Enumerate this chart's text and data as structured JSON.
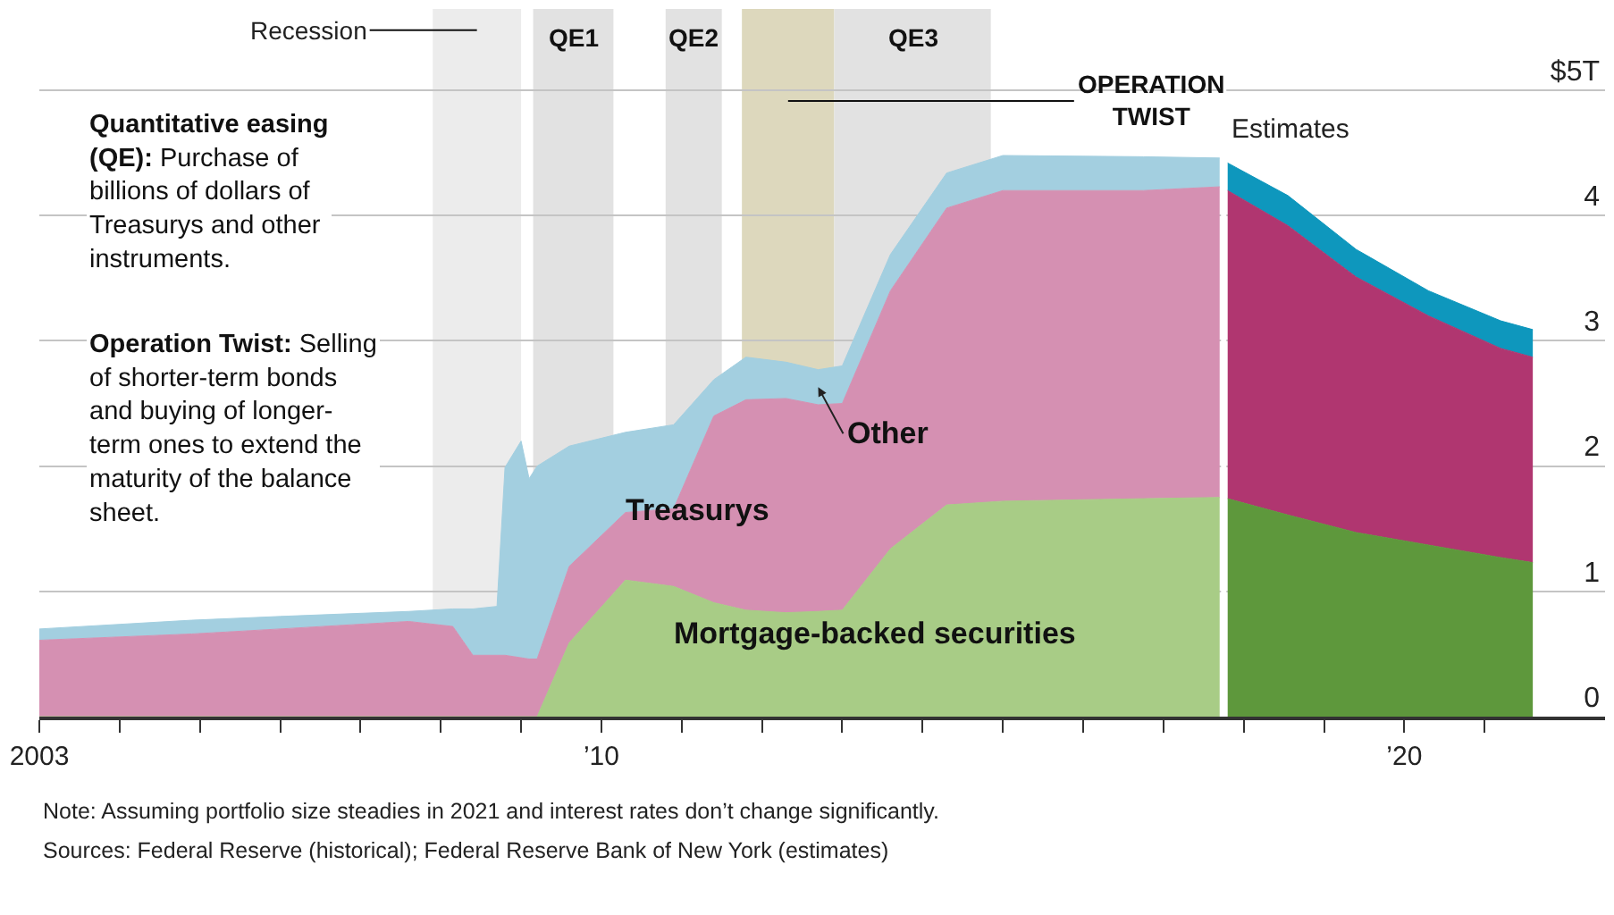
{
  "chart_data": {
    "type": "area",
    "stacked": true,
    "x": [
      2003.0,
      2004.9,
      2006.0,
      2007.6,
      2008.15,
      2008.4,
      2008.7,
      2008.8,
      2009.0,
      2009.1,
      2009.2,
      2009.6,
      2010.3,
      2010.9,
      2011.4,
      2011.8,
      2012.3,
      2012.7,
      2013.0,
      2013.6,
      2014.3,
      2015.0,
      2016.75,
      2017.7,
      2017.8,
      2018.55,
      2019.4,
      2020.3,
      2021.2,
      2021.6
    ],
    "xlim": [
      2003,
      2022.5
    ],
    "xticks": [
      {
        "value": 2003,
        "label": "2003"
      },
      {
        "value": 2004,
        "label": null
      },
      {
        "value": 2005,
        "label": null
      },
      {
        "value": 2006,
        "label": null
      },
      {
        "value": 2007,
        "label": null
      },
      {
        "value": 2008,
        "label": null
      },
      {
        "value": 2009,
        "label": null
      },
      {
        "value": 2010,
        "label": "’10"
      },
      {
        "value": 2011,
        "label": null
      },
      {
        "value": 2012,
        "label": null
      },
      {
        "value": 2013,
        "label": null
      },
      {
        "value": 2014,
        "label": null
      },
      {
        "value": 2015,
        "label": null
      },
      {
        "value": 2016,
        "label": null
      },
      {
        "value": 2017,
        "label": null
      },
      {
        "value": 2018,
        "label": null
      },
      {
        "value": 2019,
        "label": null
      },
      {
        "value": 2020,
        "label": "’20"
      },
      {
        "value": 2021,
        "label": null
      }
    ],
    "ylim": [
      0,
      5.65
    ],
    "yticks": [
      0,
      1,
      2,
      3,
      4,
      {
        "value": 5,
        "label": "$5T"
      }
    ],
    "grid": "y",
    "legend": false,
    "series": [
      {
        "name": "Mortgage-backed securities",
        "color": "#a8cc86",
        "values": [
          0,
          0,
          0,
          0,
          0,
          0,
          0,
          0,
          0,
          0,
          0,
          0.59,
          1.09,
          1.04,
          0.91,
          0.85,
          0.83,
          0.84,
          0.85,
          1.34,
          1.69,
          1.72,
          1.74,
          1.75,
          null,
          null,
          null,
          null,
          null,
          null
        ]
      },
      {
        "name": "Treasurys",
        "color": "#d590b2",
        "values": [
          0.61,
          0.66,
          0.7,
          0.76,
          0.72,
          0.49,
          0.49,
          0.49,
          0.47,
          0.46,
          0.46,
          0.61,
          0.54,
          0.62,
          1.49,
          1.68,
          1.71,
          1.65,
          1.65,
          2.06,
          2.37,
          2.48,
          2.46,
          2.48,
          null,
          null,
          null,
          null,
          null,
          null
        ]
      },
      {
        "name": "Other",
        "color": "#a3cfe0",
        "values": [
          0.09,
          0.11,
          0.1,
          0.08,
          0.14,
          0.37,
          0.39,
          1.5,
          1.73,
          1.44,
          1.54,
          0.96,
          0.64,
          0.67,
          0.29,
          0.34,
          0.29,
          0.28,
          0.3,
          0.29,
          0.28,
          0.28,
          0.27,
          0.23,
          null,
          null,
          null,
          null,
          null,
          null
        ]
      },
      {
        "color": "#5e983c",
        "values": [
          null,
          null,
          null,
          null,
          null,
          null,
          null,
          null,
          null,
          null,
          null,
          null,
          null,
          null,
          null,
          null,
          null,
          null,
          null,
          null,
          null,
          null,
          null,
          null,
          1.74,
          1.61,
          1.47,
          1.37,
          1.27,
          1.23
        ]
      },
      {
        "color": "#b03670",
        "values": [
          null,
          null,
          null,
          null,
          null,
          null,
          null,
          null,
          null,
          null,
          null,
          null,
          null,
          null,
          null,
          null,
          null,
          null,
          null,
          null,
          null,
          null,
          null,
          null,
          2.46,
          2.31,
          2.04,
          1.83,
          1.67,
          1.64
        ]
      },
      {
        "color": "#0e97bd",
        "values": [
          null,
          null,
          null,
          null,
          null,
          null,
          null,
          null,
          null,
          null,
          null,
          null,
          null,
          null,
          null,
          null,
          null,
          null,
          null,
          null,
          null,
          null,
          null,
          null,
          0.22,
          0.24,
          0.22,
          0.2,
          0.22,
          0.22
        ]
      }
    ],
    "bands": [
      {
        "axis": "x",
        "from": 2007.9,
        "to": 2009.0,
        "label": "Recession",
        "color": "#ececec"
      },
      {
        "axis": "x",
        "from": 2009.15,
        "to": 2010.15,
        "label": "QE1",
        "color": "#e2e2e2"
      },
      {
        "axis": "x",
        "from": 2010.8,
        "to": 2011.5,
        "label": "QE2",
        "color": "#e2e2e2"
      },
      {
        "axis": "x",
        "from": 2011.75,
        "to": 2012.9,
        "label": "OPERATION TWIST",
        "color": "#ddd8bd"
      },
      {
        "axis": "x",
        "from": 2012.9,
        "to": 2014.85,
        "label": "QE3",
        "color": "#e2e2e2"
      }
    ],
    "ref_lines": [
      {
        "axis": "x",
        "value": 2017.75,
        "label": "Estimates",
        "color": "#ffffff"
      }
    ],
    "annotations": [
      "Quantitative easing (QE): Purchase of billions of dollars of Treasurys and other instruments.",
      "Operation Twist: Selling of shorter-term bonds and buying of longer-term ones to extend the maturity of the balance sheet.",
      "Note: Assuming portfolio size steadies in 2021 and interest rates don’t change significantly.",
      "Sources: Federal Reserve (historical); Federal Reserve Bank of New York (estimates)"
    ]
  }
}
